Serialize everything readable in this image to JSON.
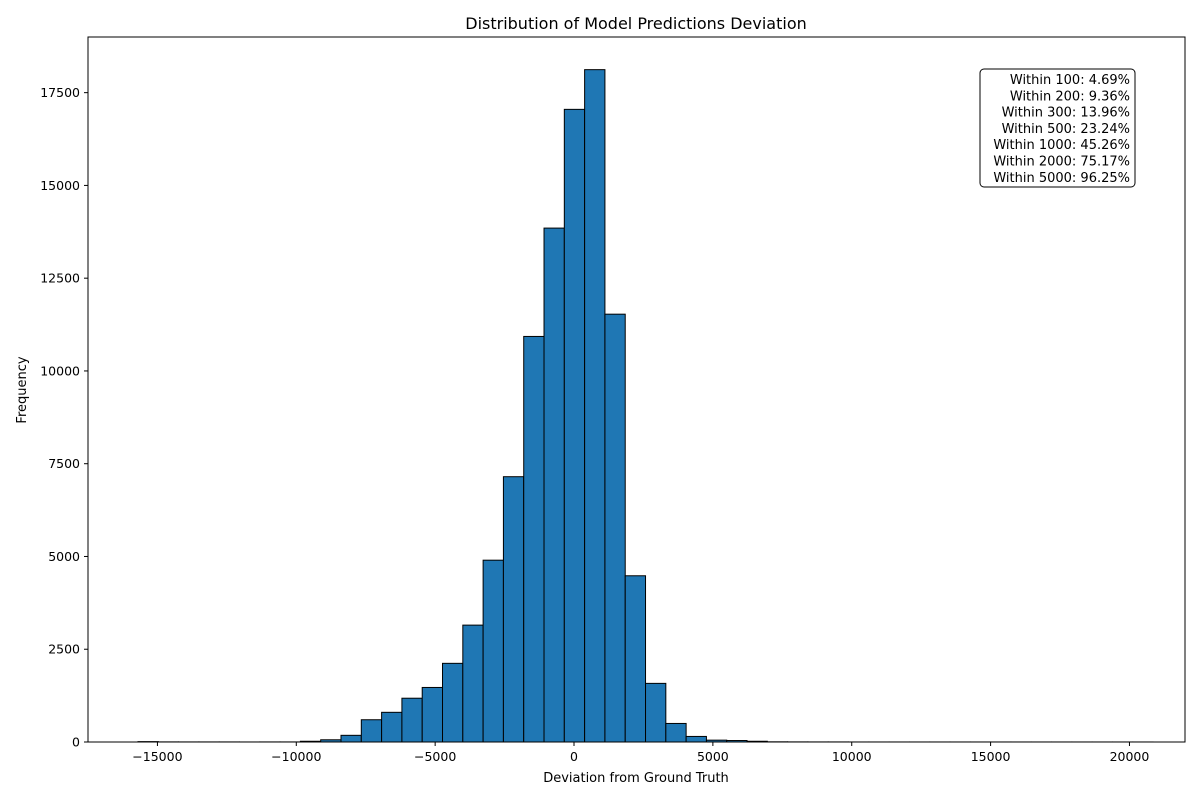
{
  "chart_data": {
    "type": "bar",
    "title": "Distribution of Model Predictions Deviation",
    "xlabel": "Deviation from Ground Truth",
    "ylabel": "Frequency",
    "xlim": [
      -17500,
      22000
    ],
    "ylim": [
      0,
      19000
    ],
    "xticks": [
      -15000,
      -10000,
      -5000,
      0,
      5000,
      10000,
      15000,
      20000
    ],
    "xtick_labels": [
      "−15000",
      "−10000",
      "−5000",
      "0",
      "5000",
      "10000",
      "15000",
      "20000"
    ],
    "yticks": [
      0,
      2500,
      5000,
      7500,
      10000,
      12500,
      15000,
      17500
    ],
    "ytick_labels": [
      "0",
      "2500",
      "5000",
      "7500",
      "10000",
      "12500",
      "15000",
      "17500"
    ],
    "bar_color": "#1f77b4",
    "edge_color": "#000000",
    "bin_start": -15700,
    "bin_width": 731,
    "frequencies": [
      10,
      3,
      2,
      2,
      2,
      1,
      2,
      2,
      20,
      60,
      180,
      600,
      800,
      1180,
      1470,
      2120,
      3150,
      4900,
      7150,
      10930,
      13850,
      17050,
      18120,
      11530,
      4480,
      1580,
      500,
      150,
      50,
      40,
      20,
      5,
      3,
      2,
      2,
      1,
      1,
      1,
      1,
      1,
      1,
      1,
      1,
      1,
      1,
      1,
      1,
      1,
      1,
      1
    ],
    "grid": false,
    "annotation": {
      "position": "top-right",
      "lines": [
        "Within 100: 4.69%",
        "Within 200: 9.36%",
        "Within 300: 13.96%",
        "Within 500: 23.24%",
        "Within 1000: 45.26%",
        "Within 2000: 75.17%",
        "Within 5000: 96.25%"
      ]
    }
  }
}
